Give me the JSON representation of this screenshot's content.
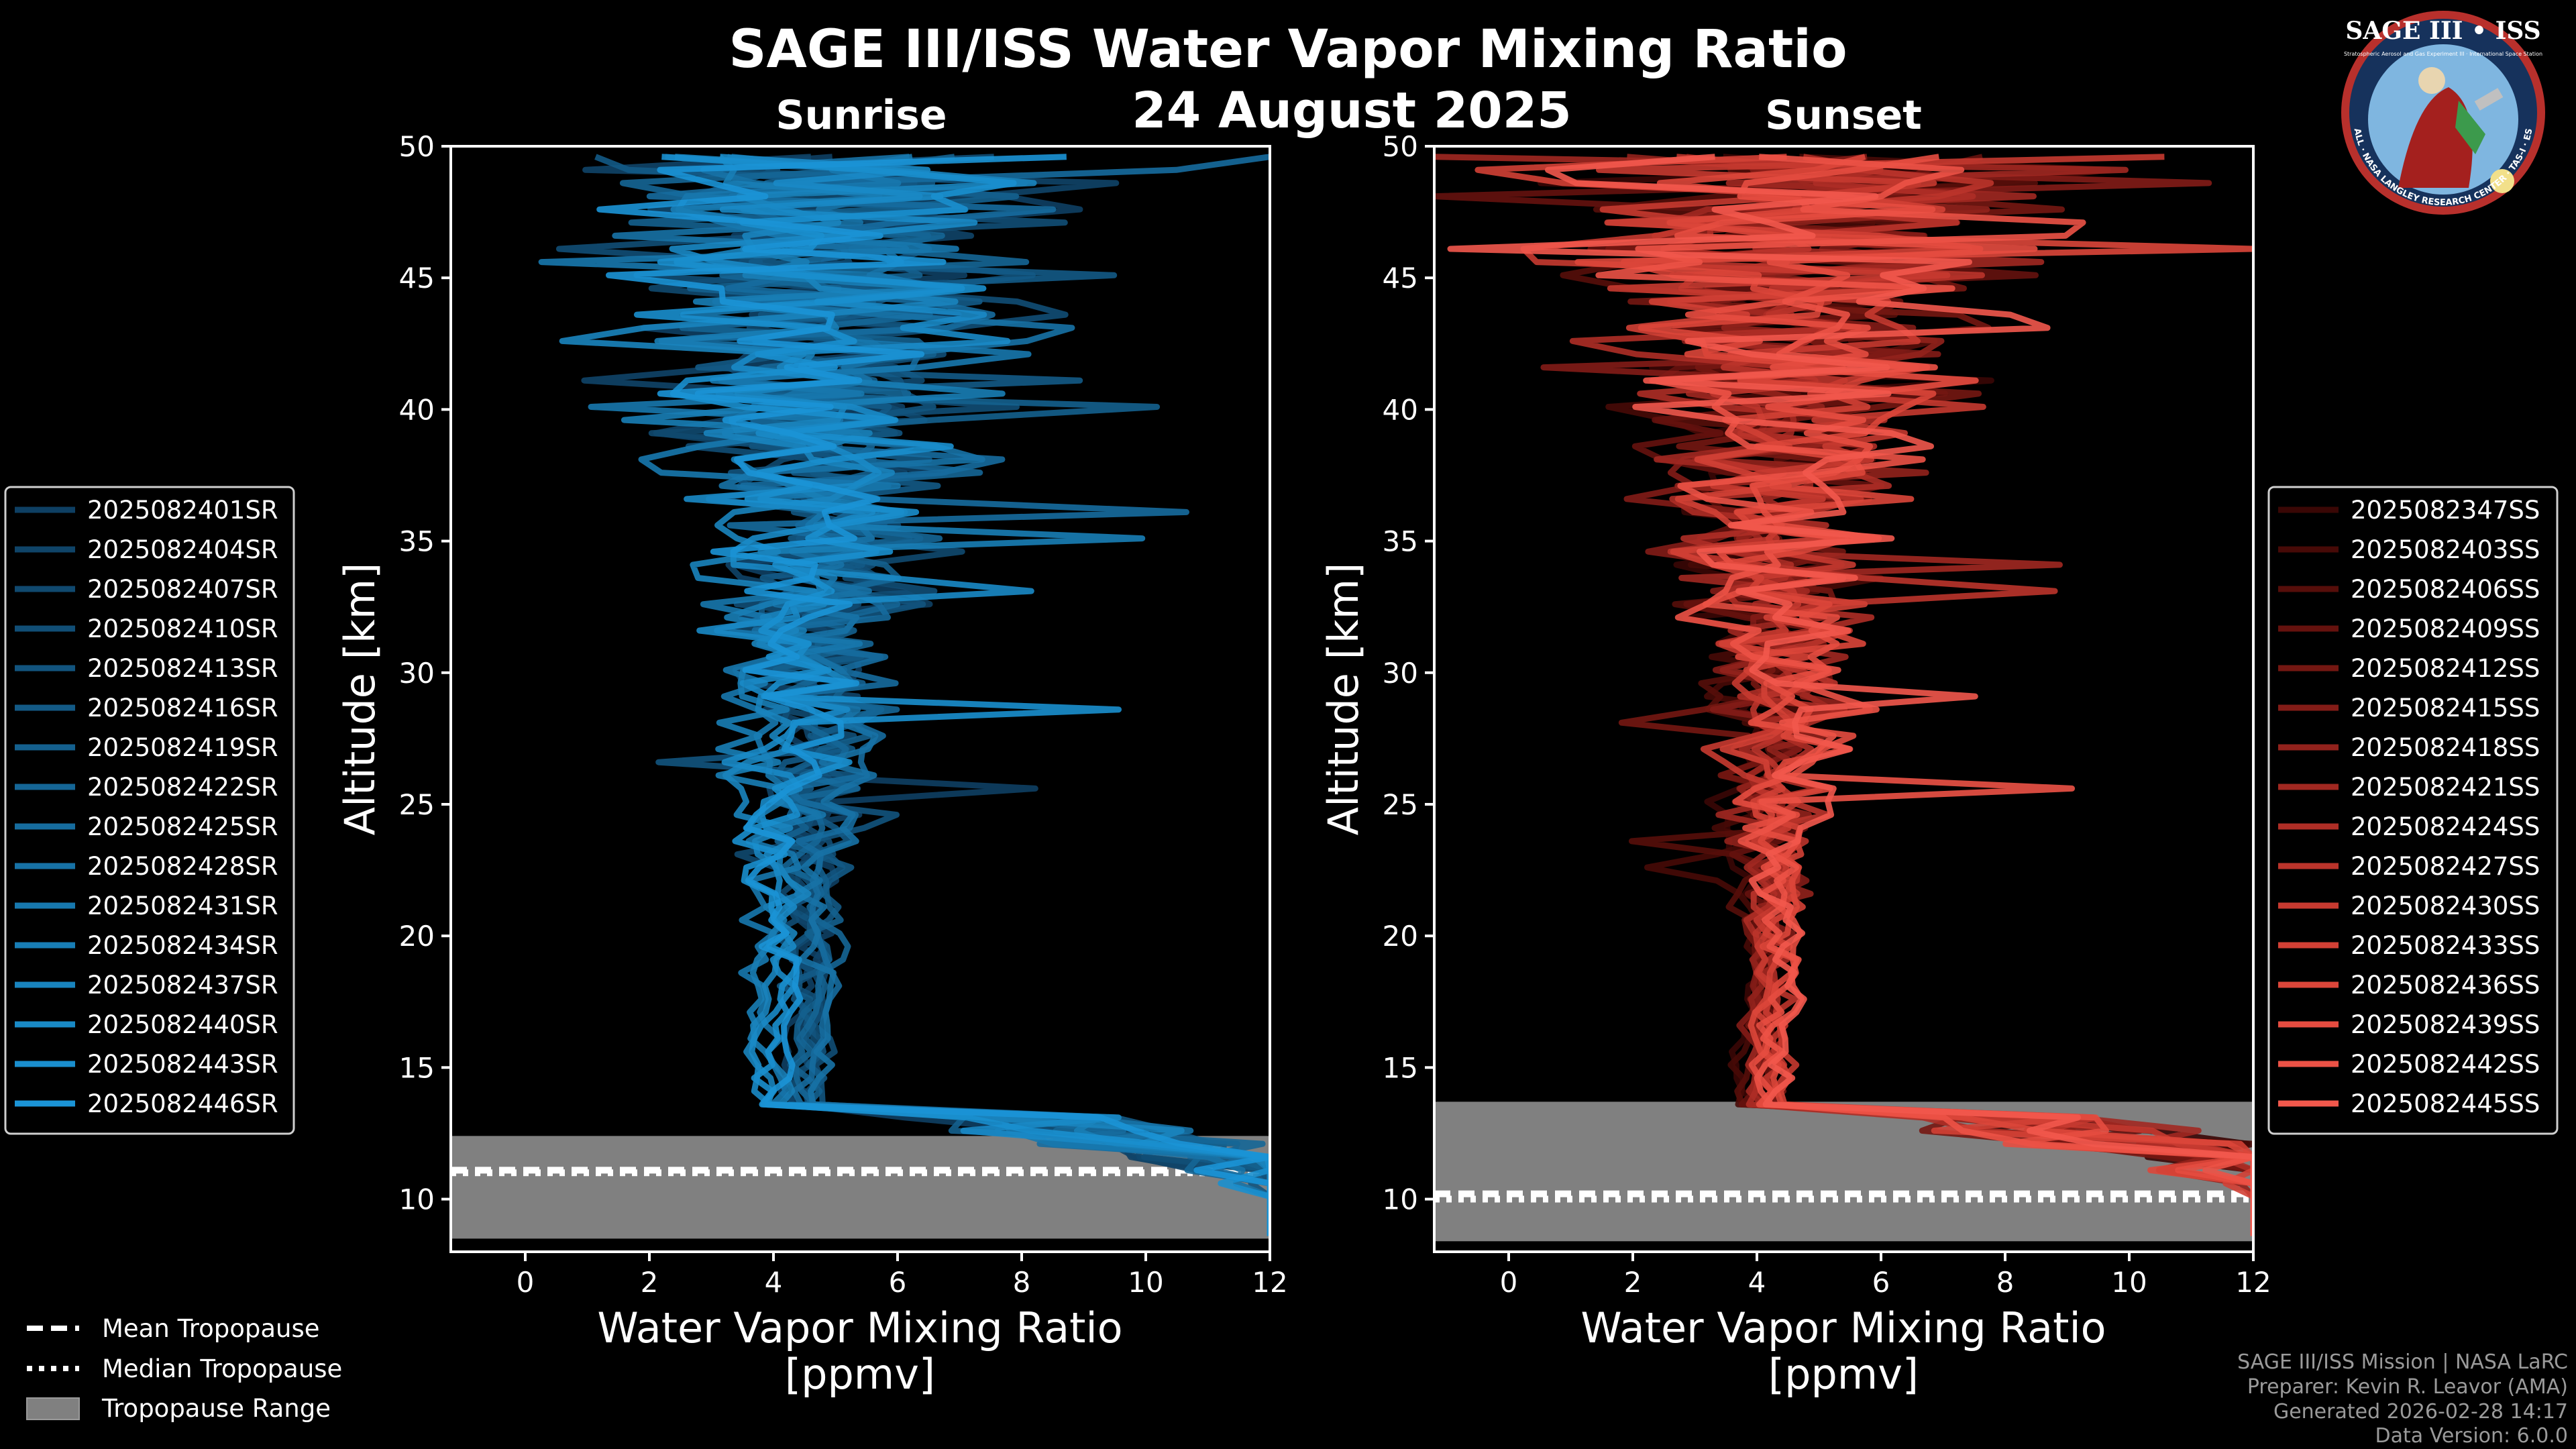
{
  "title": "SAGE III/ISS Water Vapor Mixing Ratio",
  "date": "24 August 2025",
  "logo": {
    "name": "SAGE III • ISS",
    "subtitle": "Stratospheric Aerosol and Gas Experiment III · International Space Station",
    "ring": "BALL · NASA LANGLEY RESEARCH CENTER · TAS-I · ESA"
  },
  "colors": {
    "sunrise": "#1a8fd6",
    "sunset": "#ec5547",
    "tropo_band": "#808080",
    "background": "#000000"
  },
  "chart_data": [
    {
      "type": "line",
      "panel": "Sunrise",
      "title": "Sunrise",
      "xlabel": "Water Vapor Mixing Ratio\n[ppmv]",
      "xlabel_line1": "Water Vapor Mixing Ratio",
      "xlabel_line2": "[ppmv]",
      "ylabel": "Altitude [km]",
      "xlim": [
        -1.2,
        12
      ],
      "ylim": [
        8,
        50
      ],
      "xticks": [
        0,
        2,
        4,
        6,
        8,
        10,
        12
      ],
      "yticks": [
        10,
        15,
        20,
        25,
        30,
        35,
        40,
        45,
        50
      ],
      "tropopause": {
        "mean": 11.1,
        "median": 11.0,
        "range": [
          8.5,
          12.4
        ]
      },
      "series": [
        {
          "name": "2025082401SR",
          "color": "#0e3f63"
        },
        {
          "name": "2025082404SR",
          "color": "#0f4468"
        },
        {
          "name": "2025082407SR",
          "color": "#10496f"
        },
        {
          "name": "2025082410SR",
          "color": "#114e76"
        },
        {
          "name": "2025082413SR",
          "color": "#12547e"
        },
        {
          "name": "2025082416SR",
          "color": "#135a86"
        },
        {
          "name": "2025082419SR",
          "color": "#14608e"
        },
        {
          "name": "2025082422SR",
          "color": "#156696"
        },
        {
          "name": "2025082425SR",
          "color": "#166c9e"
        },
        {
          "name": "2025082428SR",
          "color": "#1772a6"
        },
        {
          "name": "2025082431SR",
          "color": "#1778ae"
        },
        {
          "name": "2025082434SR",
          "color": "#187eb6"
        },
        {
          "name": "2025082437SR",
          "color": "#1984be"
        },
        {
          "name": "2025082440SR",
          "color": "#198ac6"
        },
        {
          "name": "2025082443SR",
          "color": "#1a8fce"
        },
        {
          "name": "2025082446SR",
          "color": "#1b94d6"
        }
      ]
    },
    {
      "type": "line",
      "panel": "Sunset",
      "title": "Sunset",
      "xlabel": "Water Vapor Mixing Ratio\n[ppmv]",
      "xlabel_line1": "Water Vapor Mixing Ratio",
      "xlabel_line2": "[ppmv]",
      "ylabel": "Altitude [km]",
      "xlim": [
        -1.2,
        12
      ],
      "ylim": [
        8,
        50
      ],
      "xticks": [
        0,
        2,
        4,
        6,
        8,
        10,
        12
      ],
      "yticks": [
        10,
        15,
        20,
        25,
        30,
        35,
        40,
        45,
        50
      ],
      "tropopause": {
        "mean": 10.2,
        "median": 10.0,
        "range": [
          8.4,
          13.7
        ]
      },
      "series": [
        {
          "name": "2025082347SS",
          "color": "#3a0705"
        },
        {
          "name": "2025082403SS",
          "color": "#470a07"
        },
        {
          "name": "2025082406SS",
          "color": "#560e0a"
        },
        {
          "name": "2025082409SS",
          "color": "#65120e"
        },
        {
          "name": "2025082412SS",
          "color": "#741712"
        },
        {
          "name": "2025082415SS",
          "color": "#831c17"
        },
        {
          "name": "2025082418SS",
          "color": "#92221c"
        },
        {
          "name": "2025082421SS",
          "color": "#a12821"
        },
        {
          "name": "2025082424SS",
          "color": "#ae2e26"
        },
        {
          "name": "2025082427SS",
          "color": "#bb342b"
        },
        {
          "name": "2025082430SS",
          "color": "#c73a30"
        },
        {
          "name": "2025082433SS",
          "color": "#d24035"
        },
        {
          "name": "2025082436SS",
          "color": "#dc463a"
        },
        {
          "name": "2025082439SS",
          "color": "#e54c40"
        },
        {
          "name": "2025082442SS",
          "color": "#ec5246"
        },
        {
          "name": "2025082445SS",
          "color": "#f2584c"
        }
      ]
    }
  ],
  "tropo_legend": {
    "mean": "Mean Tropopause",
    "median": "Median Tropopause",
    "range": "Tropopause Range"
  },
  "credits": {
    "line1": "SAGE III/ISS Mission | NASA LaRC",
    "line2": "Preparer: Kevin R. Leavor (AMA)",
    "line3": "Generated 2026-02-28 14:17",
    "line4": "Data Version: 6.0.0"
  }
}
